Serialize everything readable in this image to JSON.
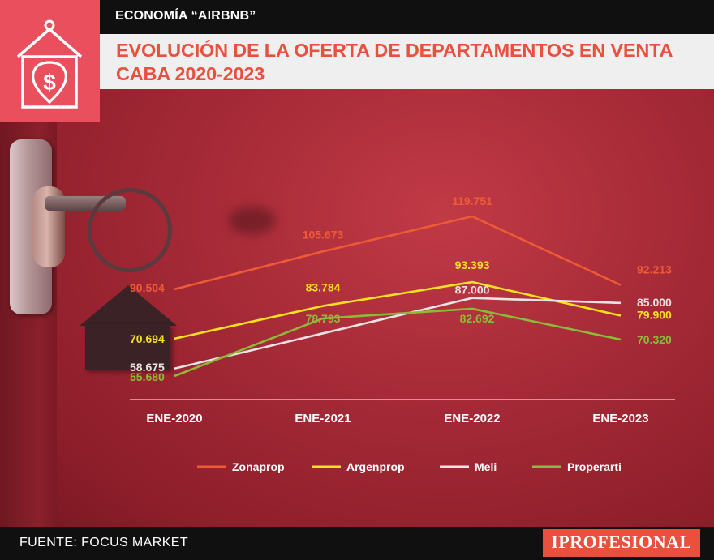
{
  "header": {
    "tag": "ECONOMÍA “AIRBNB”",
    "title_line1": "EVOLUCIÓN DE LA OFERTA DE DEPARTAMENTOS EN VENTA",
    "title_line2": "CABA 2020-2023"
  },
  "colors": {
    "accent": "#e9503e",
    "zonaprop": "#ee5a35",
    "argenprop": "#f7e11f",
    "meli": "#ece3e4",
    "properarti": "#8dbb38"
  },
  "icons": {
    "logo": "price-tag-house-dollar-icon"
  },
  "chart_data": {
    "type": "line",
    "title": "EVOLUCIÓN DE LA OFERTA DE DEPARTAMENTOS EN VENTA CABA 2020-2023",
    "xlabel": "",
    "ylabel": "",
    "categories": [
      "ENE-2020",
      "ENE-2021",
      "ENE-2022",
      "ENE-2023"
    ],
    "ylim": [
      40000,
      130000
    ],
    "grid": false,
    "legend_position": "bottom",
    "series": [
      {
        "name": "Zonaprop",
        "color": "#ee5a35",
        "values": [
          90504,
          105673,
          119751,
          92213
        ],
        "labels": [
          "90.504",
          "105.673",
          "119.751",
          "92.213"
        ]
      },
      {
        "name": "Argenprop",
        "color": "#f7e11f",
        "values": [
          70694,
          83784,
          93393,
          79900
        ],
        "labels": [
          "70.694",
          "83.784",
          "93.393",
          "79.900"
        ]
      },
      {
        "name": "Meli",
        "color": "#ece3e4",
        "values": [
          58675,
          null,
          87000,
          85000
        ],
        "labels": [
          "58.675",
          null,
          "87.000",
          "85.000"
        ]
      },
      {
        "name": "Properarti",
        "color": "#8dbb38",
        "values": [
          55680,
          78793,
          82692,
          70320
        ],
        "labels": [
          "55.680",
          "78.793",
          "82.692",
          "70.320"
        ]
      }
    ]
  },
  "footer": {
    "source": "FUENTE: FOCUS MARKET",
    "brand": "IPROFESIONAL"
  }
}
